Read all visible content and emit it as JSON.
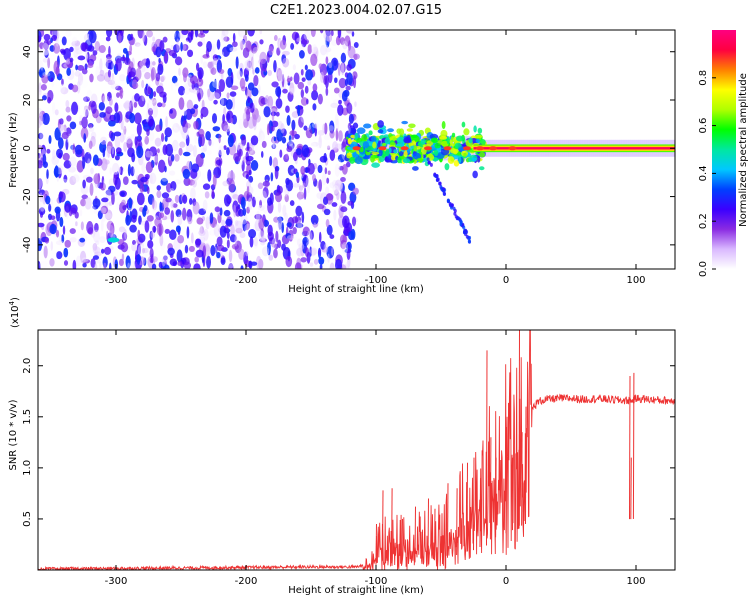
{
  "title": "C2E1.2023.004.02.07.G15",
  "chart_data": [
    {
      "type": "heatmap",
      "xlabel": "Height of straight line (km)",
      "ylabel": "Frequency (Hz)",
      "xlim": [
        -360,
        130
      ],
      "ylim": [
        -50,
        49
      ],
      "x_ticks": [
        -300,
        -200,
        -100,
        0,
        100
      ],
      "y_ticks": [
        -40,
        -20,
        0,
        20,
        40
      ],
      "colorbar": {
        "label": "Normalized spectral amplitude",
        "range": [
          0,
          1
        ],
        "ticks": [
          0.0,
          0.2,
          0.4,
          0.6,
          0.8
        ],
        "colors": [
          "#ffffff",
          "#d9b8ff",
          "#8a2be2",
          "#3a00ff",
          "#0040ff",
          "#00c8ff",
          "#00e8a0",
          "#00ff00",
          "#b0ff00",
          "#ffff00",
          "#ff8000",
          "#ff0040",
          "#ff0080"
        ]
      },
      "regions": [
        {
          "name": "noise",
          "x_range": [
            -360,
            -115
          ],
          "freq_range": [
            -50,
            49
          ],
          "amplitude": 0.1
        },
        {
          "name": "signal band",
          "x_range": [
            -120,
            130
          ],
          "center_freq": 0,
          "half_width_hz": 3
        },
        {
          "name": "hot core",
          "x_range": [
            -25,
            130
          ],
          "center_freq": 0,
          "amplitude": 0.9
        },
        {
          "name": "trailing branch",
          "x_range": [
            -60,
            -28
          ],
          "freq_range": [
            -38,
            -5
          ]
        }
      ]
    },
    {
      "type": "line",
      "xlabel": "Height of straight line (km)",
      "ylabel": "SNR (10 * v/v)",
      "y_exponent": "(x10",
      "y_exponent_power": "4",
      "y_exponent_close": ")",
      "xlim": [
        -360,
        130
      ],
      "ylim": [
        0,
        2.35
      ],
      "x_ticks": [
        -300,
        -200,
        -100,
        0,
        100
      ],
      "y_ticks": [
        0.5,
        1.0,
        1.5,
        2.0
      ],
      "y_tick_labels": [
        "0.5",
        "1.0",
        "1.5",
        "2.0"
      ],
      "series": [
        {
          "color": "#ee3333",
          "x": [
            -360,
            -250,
            -150,
            -115,
            -105,
            -100,
            -95,
            -90,
            -85,
            -80,
            -70,
            -60,
            -50,
            -40,
            -35,
            -30,
            -25,
            -20,
            -15,
            -12,
            -10,
            -5,
            0,
            5,
            8,
            10,
            12,
            15,
            20,
            25,
            30,
            40,
            50,
            60,
            70,
            80,
            90,
            95,
            97,
            100,
            110,
            120,
            130
          ],
          "y": [
            0.01,
            0.02,
            0.03,
            0.03,
            0.06,
            0.12,
            0.3,
            0.2,
            0.25,
            0.3,
            0.25,
            0.3,
            0.35,
            0.45,
            0.55,
            0.6,
            0.65,
            0.75,
            0.8,
            1.0,
            1.05,
            1.1,
            1.2,
            1.3,
            1.28,
            1.35,
            1.45,
            1.5,
            1.58,
            1.65,
            1.67,
            1.68,
            1.68,
            1.67,
            1.68,
            1.67,
            1.66,
            1.66,
            1.66,
            1.68,
            1.67,
            1.66,
            1.66
          ],
          "spikes": [
            {
              "x": -100,
              "y": 0.45
            },
            {
              "x": -95,
              "y": 0.78
            },
            {
              "x": -88,
              "y": 0.8
            },
            {
              "x": -80,
              "y": 0.5
            },
            {
              "x": -70,
              "y": 0.62
            },
            {
              "x": -60,
              "y": 0.7
            },
            {
              "x": -55,
              "y": 0.6
            },
            {
              "x": -45,
              "y": 0.85
            },
            {
              "x": -38,
              "y": 0.8
            },
            {
              "x": -30,
              "y": 1.05
            },
            {
              "x": -25,
              "y": 1.1
            },
            {
              "x": -20,
              "y": 0.9
            },
            {
              "x": -15,
              "y": 2.15
            },
            {
              "x": -12,
              "y": 1.3
            },
            {
              "x": -8,
              "y": 1.1
            },
            {
              "x": 0,
              "y": 1.4
            },
            {
              "x": 5,
              "y": 1.1
            },
            {
              "x": 10,
              "y": 2.35
            },
            {
              "x": 12,
              "y": 1.35
            },
            {
              "x": 15,
              "y": 1.6
            },
            {
              "x": 95,
              "y": 1.9
            },
            {
              "x": 98,
              "y": 1.93
            },
            {
              "x": 96,
              "y": 1.1
            }
          ]
        }
      ]
    }
  ]
}
